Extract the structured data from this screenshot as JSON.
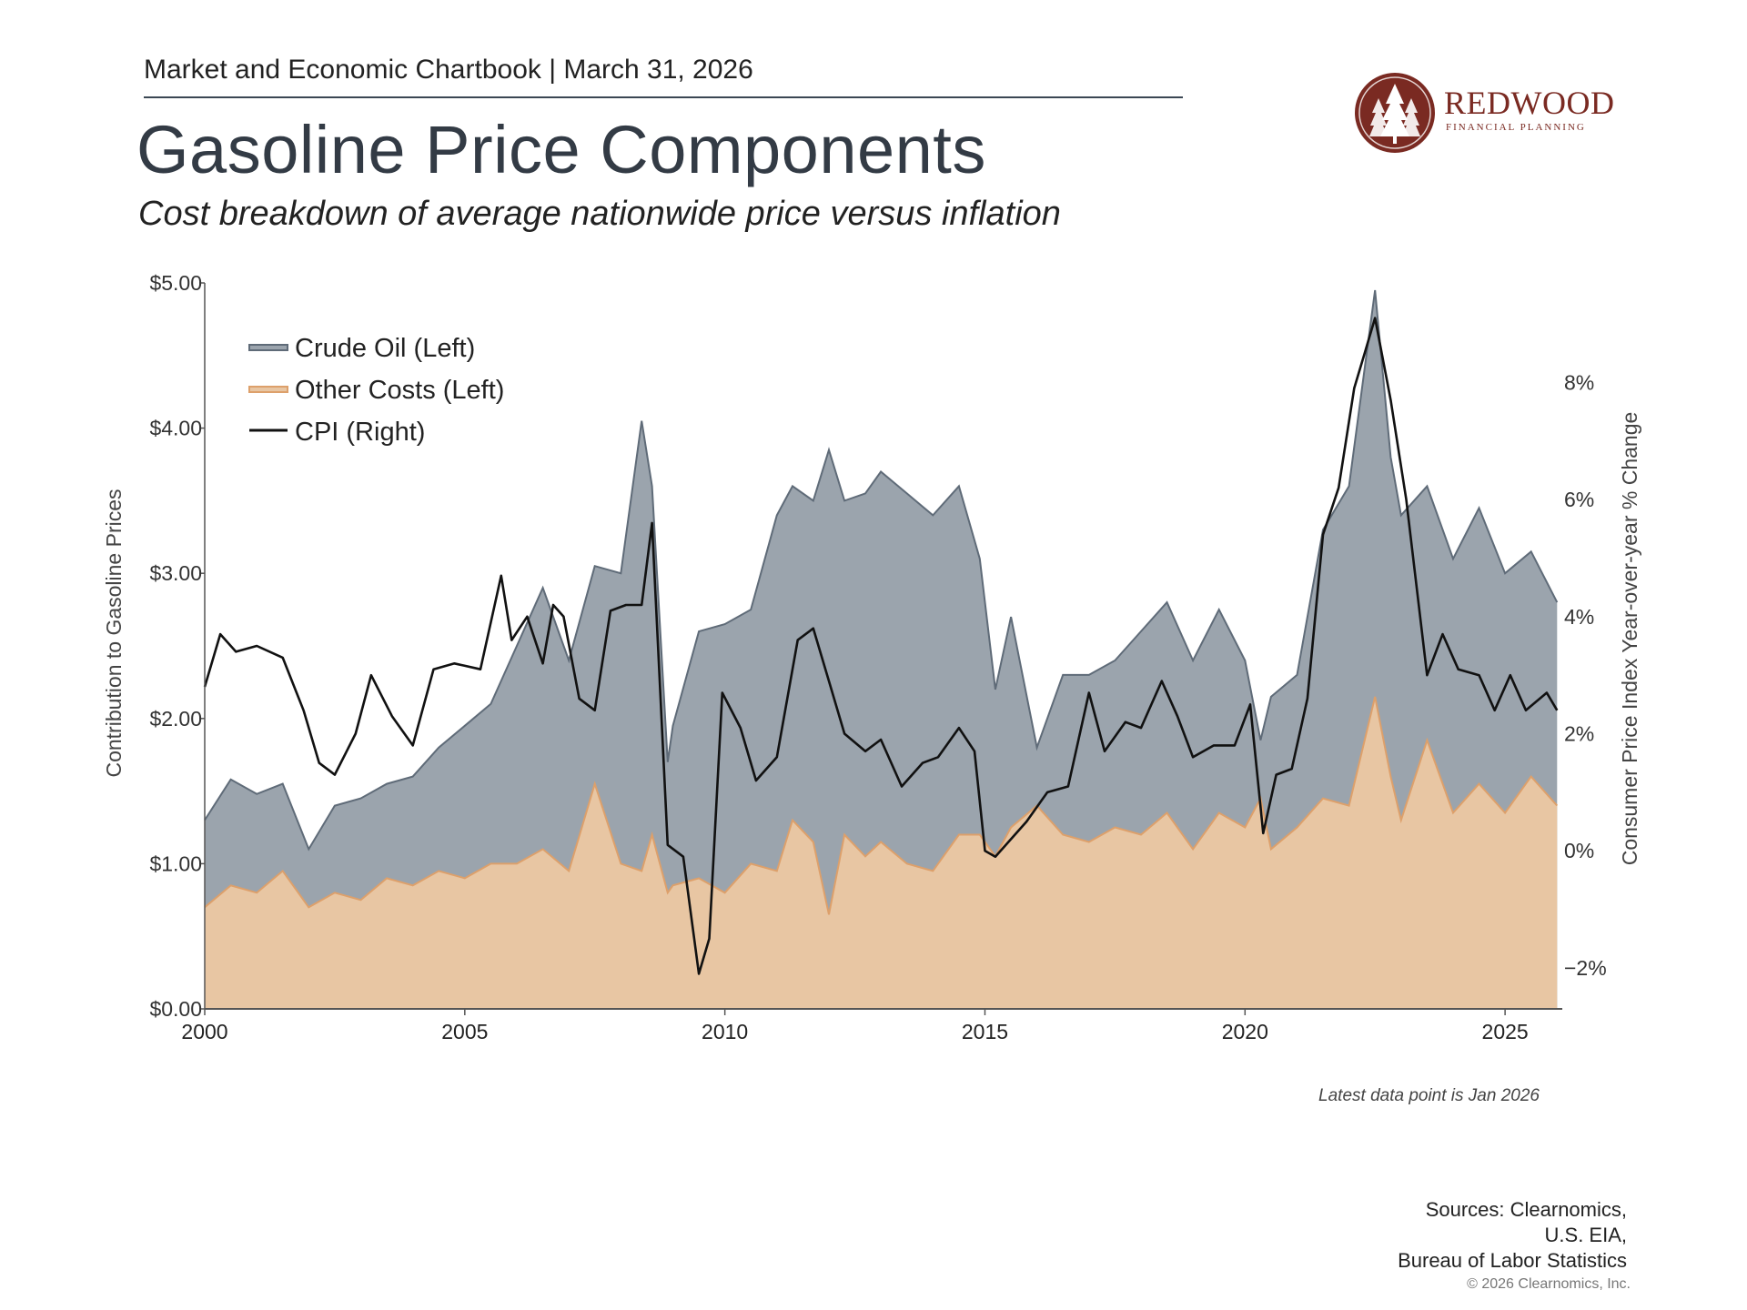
{
  "header": {
    "chartbook_line": "Market and Economic Chartbook | March 31, 2026",
    "title": "Gasoline Price Components",
    "subtitle": "Cost breakdown of average nationwide price versus inflation"
  },
  "logo": {
    "name": "REDWOOD",
    "tagline": "FINANCIAL PLANNING",
    "color": "#7a2a22"
  },
  "footnote": "Latest data point is Jan 2026",
  "sources": [
    "Sources: Clearnomics,",
    "U.S. EIA,",
    "Bureau of Labor Statistics"
  ],
  "copyright": "© 2026 Clearnomics, Inc.",
  "chart_data": {
    "type": "area",
    "xlim": [
      2000,
      2026.1
    ],
    "ylim_left": [
      0,
      5
    ],
    "ylim_right": [
      -2.7,
      9.7
    ],
    "x_ticks": [
      "2000",
      "2005",
      "2010",
      "2015",
      "2020",
      "2025"
    ],
    "y_left_ticks": [
      "$0.00",
      "$1.00",
      "$2.00",
      "$3.00",
      "$4.00",
      "$5.00"
    ],
    "y_right_ticks": [
      "−2%",
      "0%",
      "2%",
      "4%",
      "6%",
      "8%"
    ],
    "ylabel_left": "Contribution to Gasoline Prices",
    "ylabel_right": "Consumer Price Index Year-over-year % Change",
    "grid": false,
    "legend_position": "top-left",
    "colors": {
      "crude": "#9ba4ad",
      "crude_line": "#5f6b78",
      "other": "#e8c6a3",
      "other_line": "#dda06b",
      "cpi": "#111111",
      "axis": "#555555"
    },
    "series": [
      {
        "name": "Crude Oil (Left)",
        "axis": "left",
        "stacked": "total",
        "x": [
          2000,
          2000.5,
          2001,
          2001.5,
          2002,
          2002.5,
          2003,
          2003.5,
          2004,
          2004.5,
          2005,
          2005.5,
          2006,
          2006.5,
          2007,
          2007.5,
          2008,
          2008.4,
          2008.6,
          2008.9,
          2009,
          2009.5,
          2010,
          2010.5,
          2011,
          2011.3,
          2011.7,
          2012,
          2012.3,
          2012.7,
          2013,
          2013.5,
          2014,
          2014.5,
          2014.9,
          2015.2,
          2015.5,
          2016,
          2016.5,
          2017,
          2017.5,
          2018,
          2018.5,
          2019,
          2019.5,
          2020,
          2020.3,
          2020.5,
          2021,
          2021.5,
          2022,
          2022.5,
          2022.8,
          2023,
          2023.5,
          2024,
          2024.5,
          2025,
          2025.5,
          2026
        ],
        "values": [
          1.3,
          1.58,
          1.48,
          1.55,
          1.1,
          1.4,
          1.45,
          1.55,
          1.6,
          1.8,
          1.95,
          2.1,
          2.5,
          2.9,
          2.4,
          3.05,
          3.0,
          4.05,
          3.6,
          1.7,
          1.95,
          2.6,
          2.65,
          2.75,
          3.4,
          3.6,
          3.5,
          3.85,
          3.5,
          3.55,
          3.7,
          3.55,
          3.4,
          3.6,
          3.1,
          2.2,
          2.7,
          1.8,
          2.3,
          2.3,
          2.4,
          2.6,
          2.8,
          2.4,
          2.75,
          2.4,
          1.85,
          2.15,
          2.3,
          3.3,
          3.6,
          4.95,
          3.8,
          3.4,
          3.6,
          3.1,
          3.45,
          3.0,
          3.15,
          2.8
        ]
      },
      {
        "name": "Other Costs (Left)",
        "axis": "left",
        "stacked": "base",
        "x": [
          2000,
          2000.5,
          2001,
          2001.5,
          2002,
          2002.5,
          2003,
          2003.5,
          2004,
          2004.5,
          2005,
          2005.5,
          2006,
          2006.5,
          2007,
          2007.5,
          2008,
          2008.4,
          2008.6,
          2008.9,
          2009,
          2009.5,
          2010,
          2010.5,
          2011,
          2011.3,
          2011.7,
          2012,
          2012.3,
          2012.7,
          2013,
          2013.5,
          2014,
          2014.5,
          2014.9,
          2015.2,
          2015.5,
          2016,
          2016.5,
          2017,
          2017.5,
          2018,
          2018.5,
          2019,
          2019.5,
          2020,
          2020.3,
          2020.5,
          2021,
          2021.5,
          2022,
          2022.5,
          2022.8,
          2023,
          2023.5,
          2024,
          2024.5,
          2025,
          2025.5,
          2026
        ],
        "values": [
          0.7,
          0.85,
          0.8,
          0.95,
          0.7,
          0.8,
          0.75,
          0.9,
          0.85,
          0.95,
          0.9,
          1.0,
          1.0,
          1.1,
          0.95,
          1.55,
          1.0,
          0.95,
          1.2,
          0.8,
          0.85,
          0.9,
          0.8,
          1.0,
          0.95,
          1.3,
          1.15,
          0.65,
          1.2,
          1.05,
          1.15,
          1.0,
          0.95,
          1.2,
          1.2,
          1.05,
          1.25,
          1.4,
          1.2,
          1.15,
          1.25,
          1.2,
          1.35,
          1.1,
          1.35,
          1.25,
          1.45,
          1.1,
          1.25,
          1.45,
          1.4,
          2.15,
          1.6,
          1.3,
          1.85,
          1.35,
          1.55,
          1.35,
          1.6,
          1.4
        ]
      },
      {
        "name": "CPI (Right)",
        "axis": "right",
        "x": [
          2000,
          2000.3,
          2000.6,
          2001,
          2001.5,
          2001.9,
          2002.2,
          2002.5,
          2002.9,
          2003.2,
          2003.6,
          2004,
          2004.4,
          2004.8,
          2005.3,
          2005.7,
          2005.9,
          2006.2,
          2006.5,
          2006.7,
          2006.9,
          2007.2,
          2007.5,
          2007.8,
          2008.1,
          2008.4,
          2008.6,
          2008.9,
          2009.2,
          2009.5,
          2009.7,
          2009.95,
          2010.3,
          2010.6,
          2011,
          2011.4,
          2011.7,
          2012,
          2012.3,
          2012.7,
          2013,
          2013.4,
          2013.8,
          2014.1,
          2014.5,
          2014.8,
          2015,
          2015.2,
          2015.5,
          2015.8,
          2016.2,
          2016.6,
          2017,
          2017.3,
          2017.7,
          2018,
          2018.4,
          2018.7,
          2019,
          2019.4,
          2019.8,
          2020.1,
          2020.35,
          2020.6,
          2020.9,
          2021.2,
          2021.5,
          2021.8,
          2022.1,
          2022.3,
          2022.5,
          2022.8,
          2023.1,
          2023.5,
          2023.8,
          2024.1,
          2024.5,
          2024.8,
          2025.1,
          2025.4,
          2025.8,
          2026
        ],
        "values": [
          2.8,
          3.7,
          3.4,
          3.5,
          3.3,
          2.4,
          1.5,
          1.3,
          2.0,
          3.0,
          2.3,
          1.8,
          3.1,
          3.2,
          3.1,
          4.7,
          3.6,
          4.0,
          3.2,
          4.2,
          4.0,
          2.6,
          2.4,
          4.1,
          4.2,
          4.2,
          5.6,
          0.1,
          -0.1,
          -2.1,
          -1.5,
          2.7,
          2.1,
          1.2,
          1.6,
          3.6,
          3.8,
          2.9,
          2.0,
          1.7,
          1.9,
          1.1,
          1.5,
          1.6,
          2.1,
          1.7,
          0.0,
          -0.1,
          0.2,
          0.5,
          1.0,
          1.1,
          2.7,
          1.7,
          2.2,
          2.1,
          2.9,
          2.3,
          1.6,
          1.8,
          1.8,
          2.5,
          0.3,
          1.3,
          1.4,
          2.6,
          5.4,
          6.2,
          7.9,
          8.5,
          9.1,
          7.7,
          6.0,
          3.0,
          3.7,
          3.1,
          3.0,
          2.4,
          3.0,
          2.4,
          2.7,
          2.4
        ]
      }
    ]
  }
}
